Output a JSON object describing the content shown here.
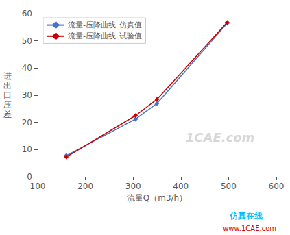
{
  "chart_data": {
    "type": "line",
    "x": [
      160,
      305,
      350,
      497
    ],
    "series": [
      {
        "name": "流量-压降曲线_仿真值",
        "color": "#4472C4",
        "values": [
          7.8,
          21.2,
          27.0,
          56.5
        ]
      },
      {
        "name": "流量-压降曲线_试验值",
        "color": "#CC0000",
        "values": [
          7.3,
          22.5,
          28.5,
          56.8
        ]
      }
    ],
    "marker": "diamond",
    "xlabel": "流量Q（m3/h）",
    "ylabel": "进\n出\n口\n压\n差",
    "xlim": [
      100,
      600
    ],
    "ylim": [
      0,
      60
    ],
    "xticks": [
      100,
      200,
      300,
      400,
      500,
      600
    ],
    "yticks": [
      0,
      10,
      20,
      30,
      40,
      50,
      60
    ],
    "grid": false,
    "legend": "upper left",
    "annotations": [
      {
        "text": "1CAE.com",
        "color": "#cccccc"
      },
      {
        "text": "仿真在线",
        "color": "#00BFFF"
      },
      {
        "text": "www.1CAE.com",
        "color": "#CC0000"
      }
    ]
  }
}
